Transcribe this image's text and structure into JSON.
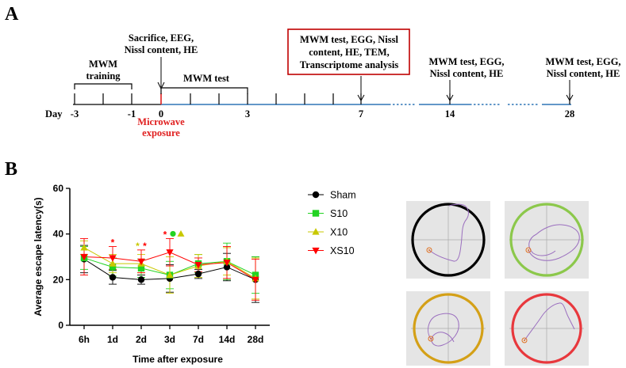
{
  "panels": {
    "a": "A",
    "b": "B"
  },
  "timeline": {
    "day_label": "Day",
    "tick_labels": [
      {
        "day": -3,
        "text": "-3"
      },
      {
        "day": -1,
        "text": "-1"
      },
      {
        "day": 0,
        "text": "0"
      },
      {
        "day": 3,
        "text": "3"
      },
      {
        "day": 7,
        "text": "7"
      },
      {
        "day": 14,
        "text": "14"
      },
      {
        "day": 28,
        "text": "28"
      }
    ],
    "mwm_training": [
      "MWM",
      "training"
    ],
    "mwm_test": "MWM test",
    "sacrifice": [
      "Sacrifice, EEG,",
      "Nissl content, HE"
    ],
    "day7_box": [
      "MWM test, EGG, Nissl",
      "content, HE, TEM,",
      "Transcriptome analysis"
    ],
    "day14": [
      "MWM test, EGG,",
      "Nissl content, HE"
    ],
    "day28": [
      "MWM test, EGG,",
      "Nissl content, HE"
    ],
    "microwave": [
      "Microwave",
      "exposure"
    ],
    "colors": {
      "line": "#000000",
      "exposure_line": "#2e75b6",
      "box": "#c00000",
      "microwave": "#e02020"
    }
  },
  "chart_data": {
    "type": "line",
    "title": "",
    "xlabel": "Time after exposure",
    "ylabel": "Average escape latency(s)",
    "categories": [
      "6h",
      "1d",
      "2d",
      "3d",
      "7d",
      "14d",
      "28d"
    ],
    "ylim": [
      0,
      60
    ],
    "yticks": [
      0,
      20,
      40,
      60
    ],
    "series": [
      {
        "name": "Sham",
        "color": "#000000",
        "marker": "circle",
        "values": [
          29,
          21,
          20,
          20.5,
          22.5,
          25.5,
          20
        ],
        "err": [
          6,
          3,
          2,
          6,
          2,
          6,
          10
        ]
      },
      {
        "name": "S10",
        "color": "#22d322",
        "marker": "square",
        "values": [
          29.5,
          25.5,
          25,
          22,
          27,
          28,
          22
        ],
        "err": [
          5,
          4,
          4,
          6,
          4,
          8,
          8
        ]
      },
      {
        "name": "X10",
        "color": "#c8c800",
        "marker": "triangle-up",
        "values": [
          34,
          27,
          27,
          22,
          26,
          28,
          20.5
        ],
        "err": [
          3,
          4,
          4,
          8,
          5,
          6,
          9
        ]
      },
      {
        "name": "XS10",
        "color": "#ff0000",
        "marker": "triangle-down",
        "values": [
          30,
          29.5,
          28,
          32,
          26.5,
          27.5,
          20
        ],
        "err": [
          8,
          5,
          5,
          6,
          3,
          7,
          9
        ]
      }
    ],
    "annotations": [
      {
        "category": "1d",
        "text": "*",
        "color": "#ff0000"
      },
      {
        "category": "2d",
        "text": "*",
        "color": "#c8c800"
      },
      {
        "category": "2d",
        "text": "*",
        "color": "#ff0000"
      },
      {
        "category": "3d",
        "text": "*",
        "color": "#ff0000"
      }
    ]
  },
  "swim_paths": [
    {
      "group": "Sham",
      "ring_color": "#000000"
    },
    {
      "group": "S10",
      "ring_color": "#8cc84b"
    },
    {
      "group": "X10",
      "ring_color": "#d4a017"
    },
    {
      "group": "XS10",
      "ring_color": "#e8383d"
    }
  ]
}
